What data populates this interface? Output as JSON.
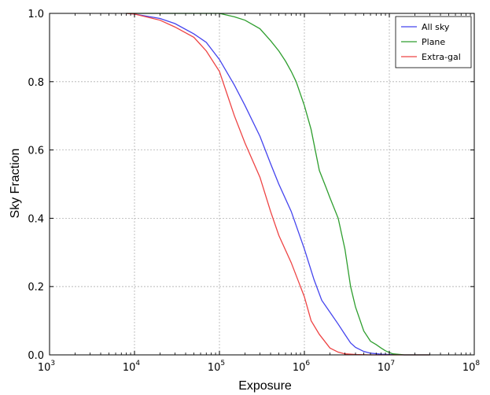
{
  "chart_data": {
    "type": "line",
    "title": "",
    "xlabel": "Exposure",
    "ylabel": "Sky Fraction",
    "xscale": "log",
    "xlim": [
      1000,
      100000000
    ],
    "ylim": [
      0.0,
      1.0
    ],
    "x_ticks": [
      {
        "value": 1000,
        "base": "10",
        "exp": "3"
      },
      {
        "value": 10000,
        "base": "10",
        "exp": "4"
      },
      {
        "value": 100000,
        "base": "10",
        "exp": "5"
      },
      {
        "value": 1000000,
        "base": "10",
        "exp": "6"
      },
      {
        "value": 10000000,
        "base": "10",
        "exp": "7"
      },
      {
        "value": 100000000,
        "base": "10",
        "exp": "8"
      }
    ],
    "y_ticks": [
      {
        "value": 0.0,
        "label": "0.0"
      },
      {
        "value": 0.2,
        "label": "0.2"
      },
      {
        "value": 0.4,
        "label": "0.4"
      },
      {
        "value": 0.6,
        "label": "0.6"
      },
      {
        "value": 0.8,
        "label": "0.8"
      },
      {
        "value": 1.0,
        "label": "1.0"
      }
    ],
    "grid": true,
    "legend_position": "top-right",
    "series": [
      {
        "name": "All sky",
        "color": "#4444ee",
        "x": [
          8000,
          10000,
          20000,
          30000,
          50000,
          70000,
          100000,
          150000,
          200000,
          300000,
          400000,
          500000,
          700000,
          1000000,
          1300000,
          1600000,
          2000000,
          2500000,
          3000000,
          3500000,
          4000000,
          5000000,
          6000000,
          8000000,
          10000000,
          15000000,
          20000000,
          30000000
        ],
        "y": [
          1.0,
          0.998,
          0.985,
          0.97,
          0.94,
          0.915,
          0.865,
          0.79,
          0.73,
          0.64,
          0.56,
          0.5,
          0.42,
          0.31,
          0.22,
          0.16,
          0.125,
          0.09,
          0.06,
          0.035,
          0.022,
          0.01,
          0.005,
          0.002,
          0.001,
          0.0,
          0.0,
          0.0
        ]
      },
      {
        "name": "Plane",
        "color": "#2e9e2e",
        "x": [
          8000,
          50000,
          100000,
          150000,
          200000,
          300000,
          400000,
          500000,
          600000,
          700000,
          800000,
          1000000,
          1200000,
          1500000,
          1800000,
          2000000,
          2500000,
          3000000,
          3500000,
          4000000,
          5000000,
          6000000,
          7000000,
          8000000,
          9000000,
          10000000,
          11000000,
          15000000,
          20000000,
          30000000
        ],
        "y": [
          1.0,
          1.0,
          1.0,
          0.99,
          0.98,
          0.955,
          0.92,
          0.89,
          0.86,
          0.83,
          0.8,
          0.73,
          0.66,
          0.54,
          0.49,
          0.46,
          0.4,
          0.31,
          0.2,
          0.14,
          0.07,
          0.04,
          0.03,
          0.02,
          0.012,
          0.007,
          0.003,
          0.0,
          0.0,
          0.0
        ]
      },
      {
        "name": "Extra-gal",
        "color": "#ee4444",
        "x": [
          8000,
          10000,
          20000,
          30000,
          50000,
          70000,
          100000,
          150000,
          200000,
          300000,
          400000,
          500000,
          700000,
          1000000,
          1200000,
          1500000,
          2000000,
          2500000,
          3000000,
          4000000,
          6000000,
          10000000,
          20000000,
          30000000
        ],
        "y": [
          1.0,
          0.998,
          0.98,
          0.96,
          0.93,
          0.89,
          0.83,
          0.7,
          0.62,
          0.52,
          0.42,
          0.35,
          0.27,
          0.17,
          0.1,
          0.06,
          0.02,
          0.008,
          0.003,
          0.001,
          0.0,
          0.0,
          0.0,
          0.0
        ]
      }
    ]
  }
}
